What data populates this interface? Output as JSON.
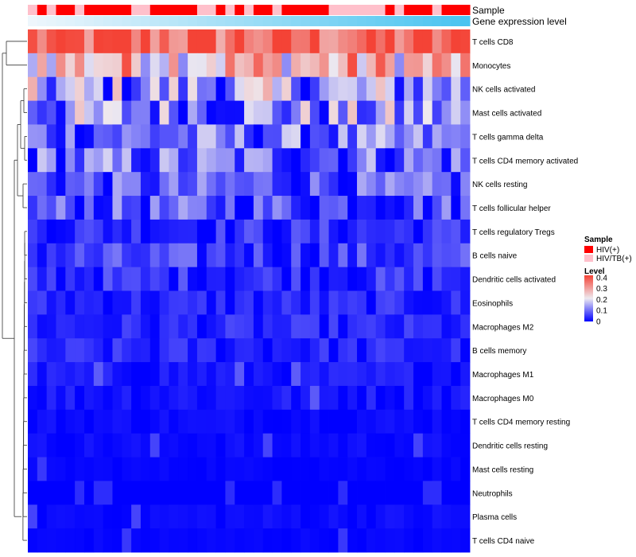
{
  "chart_data": {
    "type": "heatmap",
    "annotation_tracks": [
      {
        "name": "Sample"
      },
      {
        "name": "Gene expression level"
      }
    ],
    "sample_groups": [
      "HIV/TB(+)",
      "HIV(+)",
      "HIV/TB(+)",
      "HIV(+)",
      "HIV(+)",
      "HIV/TB(+)",
      "HIV(+)",
      "HIV(+)",
      "HIV(+)",
      "HIV(+)",
      "HIV(+)",
      "HIV/TB(+)",
      "HIV/TB(+)",
      "HIV(+)",
      "HIV(+)",
      "HIV(+)",
      "HIV(+)",
      "HIV(+)",
      "HIV/TB(+)",
      "HIV/TB(+)",
      "HIV(+)",
      "HIV/TB(+)",
      "HIV(+)",
      "HIV/TB(+)",
      "HIV(+)",
      "HIV(+)",
      "HIV/TB(+)",
      "HIV(+)",
      "HIV(+)",
      "HIV(+)",
      "HIV(+)",
      "HIV(+)",
      "HIV/TB(+)",
      "HIV/TB(+)",
      "HIV/TB(+)",
      "HIV/TB(+)",
      "HIV/TB(+)",
      "HIV/TB(+)",
      "HIV(+)",
      "HIV/TB(+)",
      "HIV(+)",
      "HIV(+)",
      "HIV(+)",
      "HIV/TB(+)",
      "HIV(+)",
      "HIV(+)",
      "HIV(+)"
    ],
    "rows": [
      "T cells CD8",
      "Monocytes",
      "NK cells activated",
      "Mast cells activated",
      "T cells gamma delta",
      "T cells CD4 memory activated",
      "NK cells resting",
      "T cells follicular helper",
      "T cells regulatory  Tregs",
      "B cells naive",
      "Dendritic cells activated",
      "Eosinophils",
      "Macrophages M2",
      "B cells memory",
      "Macrophages M1",
      "Macrophages M0",
      "T cells CD4 memory resting",
      "Dendritic cells resting",
      "Mast cells resting",
      "Neutrophils",
      "Plasma cells",
      "T cells CD4 naive"
    ],
    "row_base_levels": [
      0.36,
      0.27,
      0.13,
      0.12,
      0.09,
      0.09,
      0.07,
      0.07,
      0.04,
      0.05,
      0.04,
      0.03,
      0.03,
      0.03,
      0.02,
      0.02,
      0.01,
      0.01,
      0.005,
      0.0,
      0.01,
      0.005
    ],
    "sample_columns": 47,
    "row_cluster_merges": [
      [
        "NK cells activated",
        "Mast cells activated"
      ],
      [
        "T cells gamma delta",
        "T cells CD4 memory activated"
      ],
      [
        "NK cells resting",
        "T cells follicular helper"
      ]
    ],
    "legend": {
      "sample": {
        "title": "Sample",
        "entries": [
          {
            "label": "HIV(+)",
            "color": "#ff0000"
          },
          {
            "label": "HIV/TB(+)",
            "color": "#ffc0cb"
          }
        ]
      },
      "level": {
        "title": "Level",
        "ticks": [
          {
            "label": "0.4",
            "value": 0.4
          },
          {
            "label": "0.3",
            "value": 0.3
          },
          {
            "label": "0.2",
            "value": 0.2
          },
          {
            "label": "0.1",
            "value": 0.1
          },
          {
            "label": "0",
            "value": 0.0
          }
        ],
        "range": [
          0,
          0.42
        ],
        "colors": {
          "low": "#0000ff",
          "mid": "#eeeaf0",
          "high": "#f44336"
        }
      }
    }
  }
}
